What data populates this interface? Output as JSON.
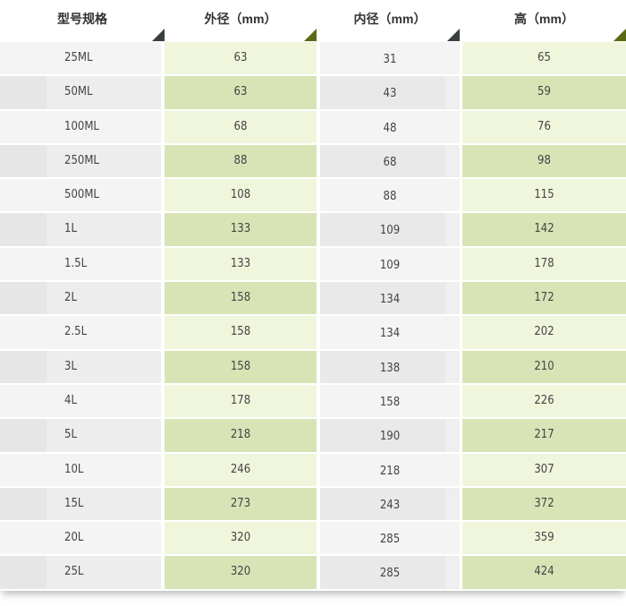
{
  "headers": [
    "型号规格",
    "外径（mm）",
    "内径（mm）",
    "高（mm）"
  ],
  "rows": [
    [
      "25ML",
      "63",
      "31",
      "65"
    ],
    [
      "50ML",
      "63",
      "43",
      "59"
    ],
    [
      "100ML",
      "68",
      "48",
      "76"
    ],
    [
      "250ML",
      "88",
      "68",
      "98"
    ],
    [
      "500ML",
      "108",
      "88",
      "115"
    ],
    [
      "1L",
      "133",
      "109",
      "142"
    ],
    [
      "1.5L",
      "133",
      "109",
      "178"
    ],
    [
      "2L",
      "158",
      "134",
      "172"
    ],
    [
      "2.5L",
      "158",
      "134",
      "202"
    ],
    [
      "3L",
      "158",
      "138",
      "210"
    ],
    [
      "4L",
      "178",
      "158",
      "226"
    ],
    [
      "5L",
      "218",
      "190",
      "217"
    ],
    [
      "10L",
      "246",
      "218",
      "307"
    ],
    [
      "15L",
      "273",
      "243",
      "372"
    ],
    [
      "20L",
      "320",
      "285",
      "359"
    ],
    [
      "25L",
      "320",
      "285",
      "424"
    ]
  ],
  "colors": {
    "green_light": "#f0f6dc",
    "green_dark": "#d8e4b6",
    "gray_light": "#f4f4f4",
    "gray_dark": "#e9e9e9",
    "accent": "#5a6b14"
  }
}
